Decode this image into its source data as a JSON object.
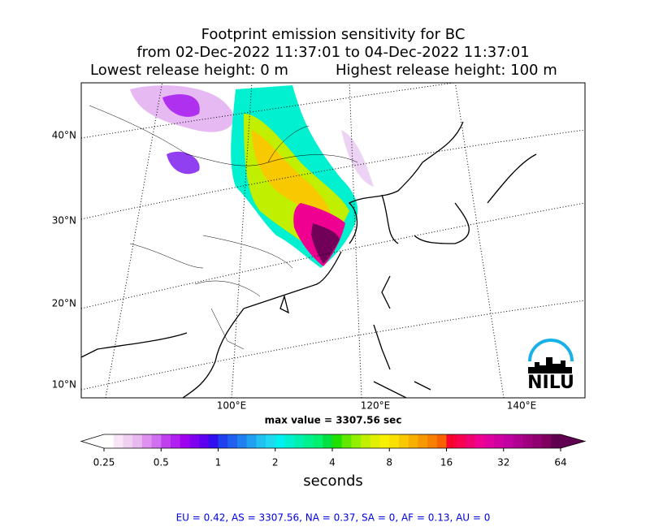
{
  "title": [
    "Footprint emission sensitivity for BC",
    "from 02-Dec-2022 11:37:01 to 04-Dec-2022 11:37:01",
    "Lowest release height: 0 m",
    "Highest release height: 100 m"
  ],
  "map": {
    "lat_labels": [
      "40°N",
      "30°N",
      "20°N",
      "10°N"
    ],
    "lon_labels": [
      "100°E",
      "120°E",
      "140°E"
    ],
    "logo": "NILU"
  },
  "max_value": "max value = 3307.56 sec",
  "colorbar": {
    "scale": "log",
    "ticks": [
      0.25,
      0.5,
      1,
      2,
      4,
      8,
      16,
      32,
      64
    ],
    "label": "seconds",
    "colors": [
      "#ffffff",
      "#f8e6f8",
      "#f0d0f0",
      "#e8b8f0",
      "#e090f0",
      "#d070f0",
      "#c040f0",
      "#b020f0",
      "#a000f0",
      "#8000f0",
      "#6000f0",
      "#3010f0",
      "#2040f0",
      "#2060f0",
      "#2080f0",
      "#20a0f0",
      "#20c0f0",
      "#20d8f0",
      "#00f0f0",
      "#00f0d0",
      "#00f0b0",
      "#00f090",
      "#00f070",
      "#00e040",
      "#20e000",
      "#60e800",
      "#90f000",
      "#c0f000",
      "#e0f000",
      "#f8f000",
      "#f8e000",
      "#f8c800",
      "#f8b000",
      "#f89800",
      "#f88000",
      "#f86000",
      "#f80030",
      "#f80050",
      "#f00070",
      "#f00090",
      "#e000a0",
      "#d000a0",
      "#c000a0",
      "#b00090",
      "#a00080",
      "#900070",
      "#800060",
      "#600050"
    ]
  },
  "footer": "EU = 0.42,  AS = 3307.56,  NA = 0.37,  SA = 0,  AF = 0.13,  AU = 0"
}
